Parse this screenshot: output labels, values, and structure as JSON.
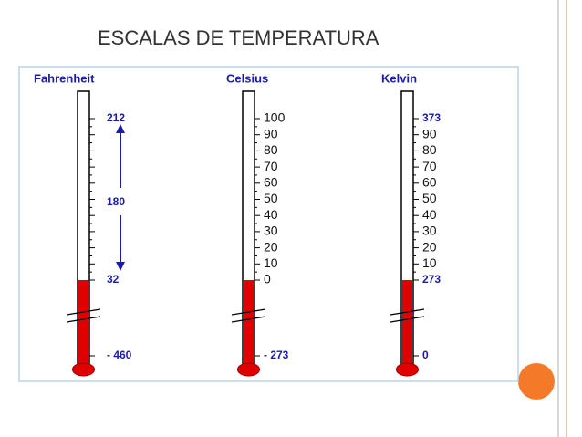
{
  "title": "ESCALAS DE TEMPERATURA",
  "thermometers": [
    {
      "name": "Fahrenheit",
      "labels": [
        "212",
        "180",
        "32",
        "- 460"
      ]
    },
    {
      "name": "Celsius",
      "labels": [
        "100",
        "90",
        "80",
        "70",
        "60",
        "50",
        "40",
        "30",
        "20",
        "10",
        "0",
        "- 273"
      ]
    },
    {
      "name": "Kelvin",
      "labels": [
        "373",
        "90",
        "80",
        "70",
        "60",
        "50",
        "40",
        "30",
        "20",
        "10",
        "273",
        "0"
      ]
    }
  ]
}
